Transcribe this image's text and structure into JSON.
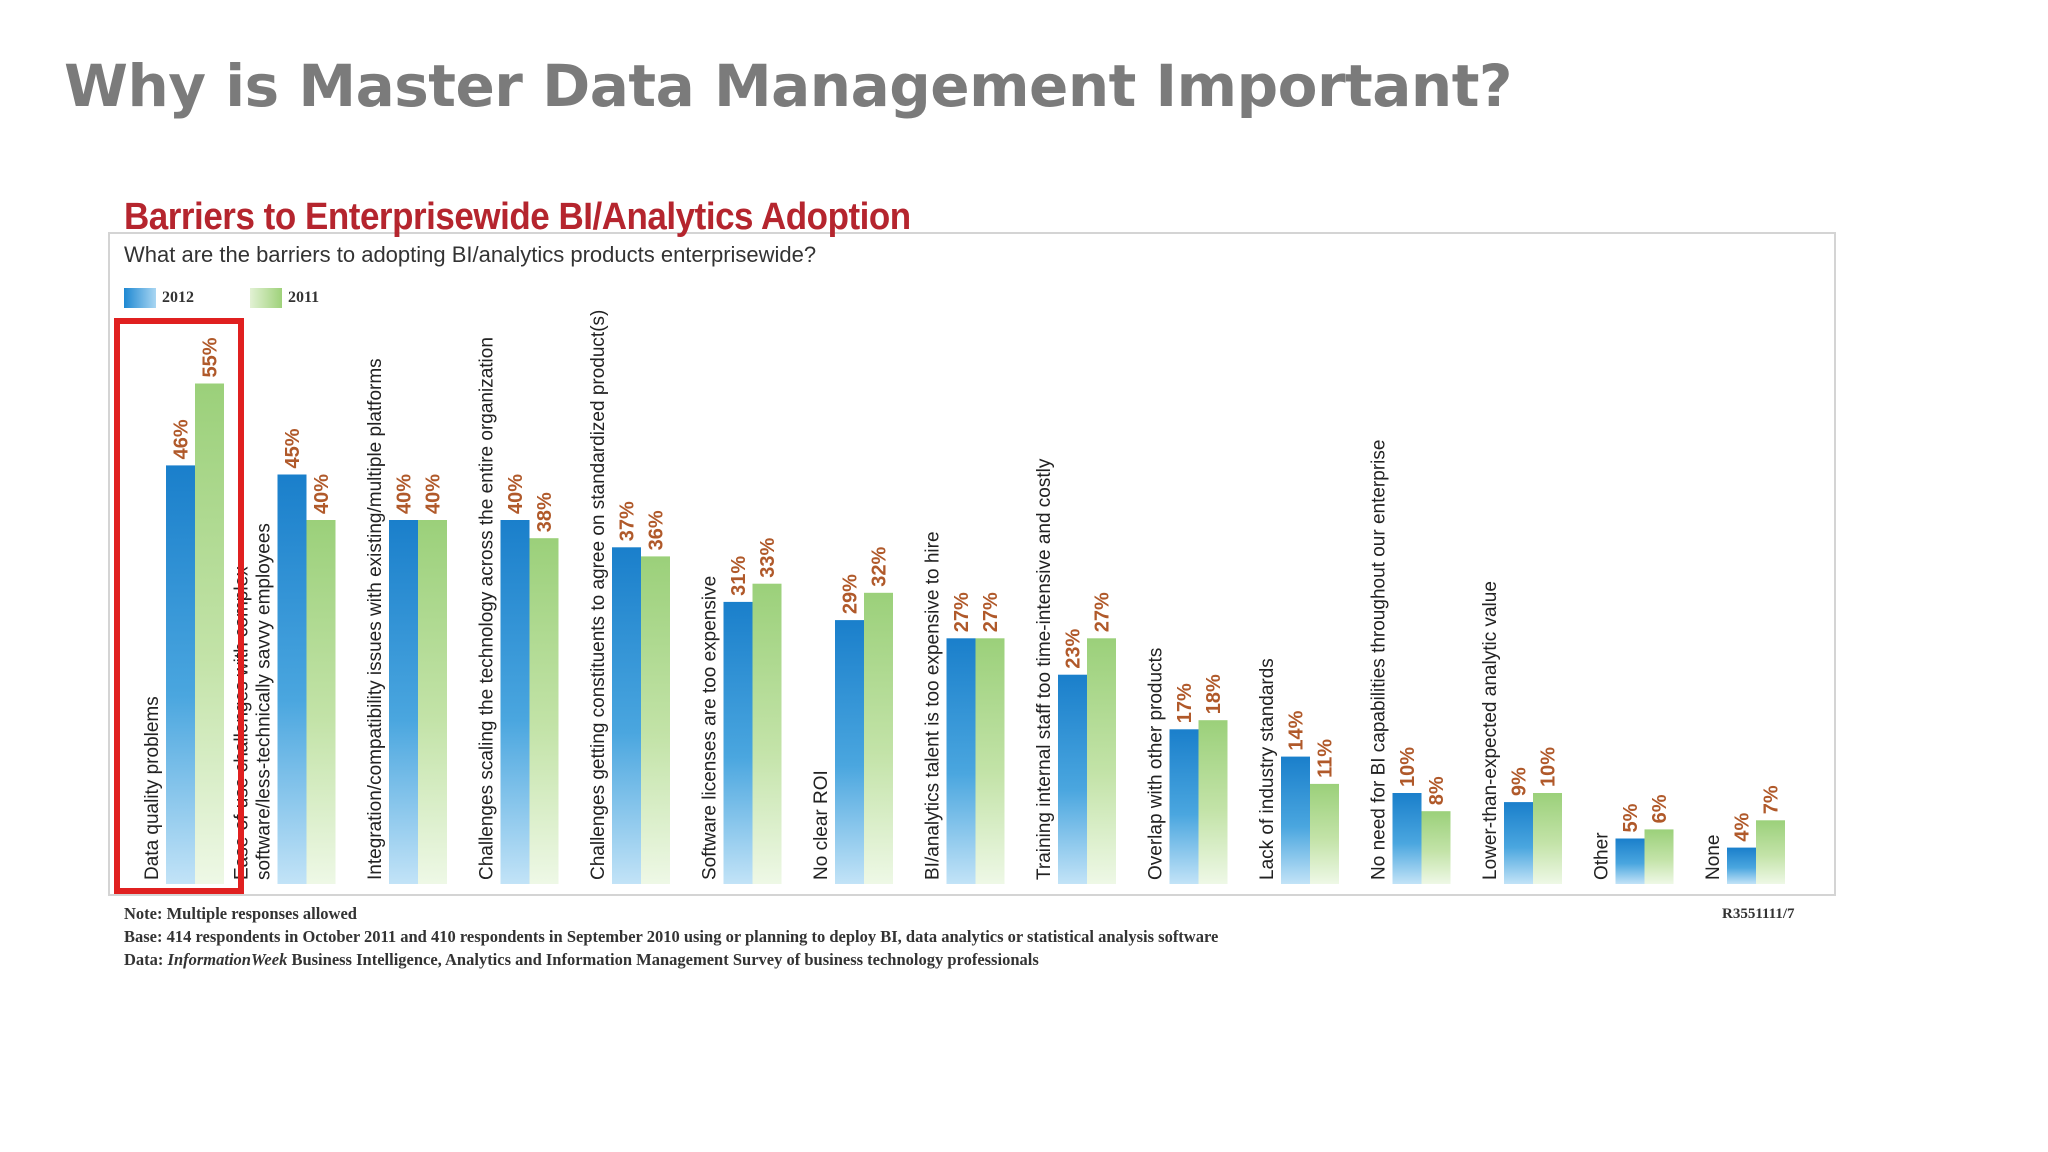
{
  "slide": {
    "title": "Why is Master Data Management Important?"
  },
  "colors": {
    "series_2012": "#1e88d2",
    "series_2011": "#9fd27a",
    "value_label": "#b0592a",
    "highlight": "#e02020",
    "chart_title": "#b5252e"
  },
  "chart_data": {
    "type": "bar",
    "title": "Barriers to Enterprisewide BI/Analytics Adoption",
    "subtitle": "What are the barriers to adopting BI/analytics products enterprisewide?",
    "categories": [
      "Data quality problems",
      "Ease-of-use challenges with complex software/less-technically savvy employees",
      "Integration/compatibility issues with existing/multiple platforms",
      "Challenges scaling the technology across the entire organization",
      "Challenges getting constituents to agree on standardized product(s)",
      "Software licenses are too expensive",
      "No clear ROI",
      "BI/analytics talent is too expensive to hire",
      "Training internal staff too time-intensive and costly",
      "Overlap with other products",
      "Lack of industry standards",
      "No need for BI capabilities throughout our enterprise",
      "Lower-than-expected analytic value",
      "Other",
      "None"
    ],
    "category_lines": [
      [
        "Data quality problems"
      ],
      [
        "Ease-of-use challenges with complex",
        "software/less-technically savvy employees"
      ],
      [
        "Integration/compatibility issues with existing/multiple platforms"
      ],
      [
        "Challenges scaling the technology across the entire organization"
      ],
      [
        "Challenges getting constituents to agree on standardized product(s)"
      ],
      [
        "Software licenses are too expensive"
      ],
      [
        "No clear ROI"
      ],
      [
        "BI/analytics talent is too expensive to hire"
      ],
      [
        "Training internal staff too time-intensive and costly"
      ],
      [
        "Overlap with other products"
      ],
      [
        "Lack of industry standards"
      ],
      [
        "No need for BI capabilities throughout our enterprise"
      ],
      [
        "Lower-than-expected analytic value"
      ],
      [
        "Other"
      ],
      [
        "None"
      ]
    ],
    "series": [
      {
        "name": "2012",
        "values": [
          46,
          45,
          40,
          40,
          37,
          31,
          29,
          27,
          23,
          17,
          14,
          10,
          9,
          5,
          4
        ]
      },
      {
        "name": "2011",
        "values": [
          55,
          40,
          40,
          38,
          36,
          33,
          32,
          27,
          27,
          18,
          11,
          8,
          10,
          6,
          7
        ]
      }
    ],
    "value_suffix": "%",
    "ylim": [
      0,
      55
    ],
    "legend_position": "top-left",
    "highlighted_category": "Data quality problems",
    "grid": false
  },
  "footnotes": {
    "note": "Note: Multiple responses allowed",
    "base": "Base: 414 respondents in October 2011 and 410 respondents in September 2010 using or planning to deploy BI, data analytics or statistical analysis software",
    "data_prefix": "Data: ",
    "data_source_italic": "InformationWeek",
    "data_rest": " Business Intelligence, Analytics and Information Management Survey of business technology professionals",
    "code": "R3551111/7"
  }
}
